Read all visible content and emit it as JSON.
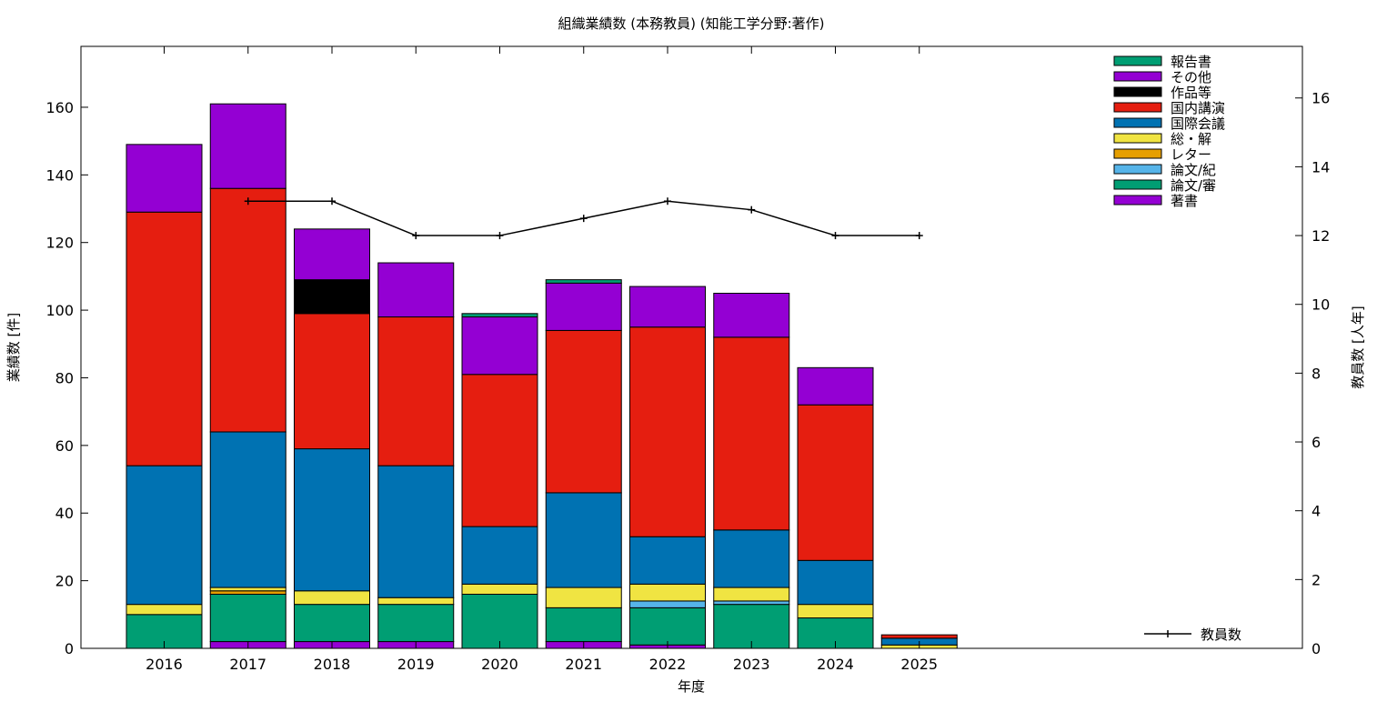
{
  "chart_data": {
    "type": "bar",
    "stacked": true,
    "title": "組織業績数 (本務教員) (知能工学分野:著作)",
    "xlabel": "年度",
    "ylabel": "業績数 [件]",
    "y2label": "教員数 [人年]",
    "ylim": [
      0,
      178
    ],
    "y2lim": [
      0,
      17.5
    ],
    "yticks": [
      0,
      20,
      40,
      60,
      80,
      100,
      120,
      140,
      160
    ],
    "y2ticks": [
      0,
      2,
      4,
      6,
      8,
      10,
      12,
      14,
      16
    ],
    "categories": [
      "2016",
      "2017",
      "2018",
      "2019",
      "2020",
      "2021",
      "2022",
      "2023",
      "2024",
      "2025"
    ],
    "series": [
      {
        "name": "著書",
        "color": "#9400d3",
        "values": [
          0,
          2,
          2,
          2,
          0,
          2,
          1,
          0,
          0,
          0
        ]
      },
      {
        "name": "論文/審",
        "color": "#009e73",
        "values": [
          10,
          14,
          11,
          11,
          16,
          10,
          11,
          13,
          9,
          0
        ]
      },
      {
        "name": "論文/紀",
        "color": "#56b4e9",
        "values": [
          0,
          0,
          0,
          0,
          0,
          0,
          2,
          1,
          0,
          0
        ]
      },
      {
        "name": "レター",
        "color": "#e69f00",
        "values": [
          0,
          1,
          0,
          0,
          0,
          0,
          0,
          0,
          0,
          0
        ]
      },
      {
        "name": "総・解",
        "color": "#f0e442",
        "values": [
          3,
          1,
          4,
          2,
          3,
          6,
          5,
          4,
          4,
          1
        ]
      },
      {
        "name": "国際会議",
        "color": "#0072b2",
        "values": [
          41,
          46,
          42,
          39,
          17,
          28,
          14,
          17,
          13,
          2
        ]
      },
      {
        "name": "国内講演",
        "color": "#e51e10",
        "values": [
          75,
          72,
          40,
          44,
          45,
          48,
          62,
          57,
          46,
          1
        ]
      },
      {
        "name": "作品等",
        "color": "#000000",
        "values": [
          0,
          0,
          10,
          0,
          0,
          0,
          0,
          0,
          0,
          0
        ]
      },
      {
        "name": "その他",
        "color": "#9400d3",
        "values": [
          20,
          25,
          15,
          16,
          17,
          14,
          12,
          13,
          11,
          0
        ]
      },
      {
        "name": "報告書",
        "color": "#009e73",
        "values": [
          0,
          0,
          0,
          0,
          1,
          1,
          0,
          0,
          0,
          0
        ]
      }
    ],
    "line_series": {
      "name": "教員数",
      "color": "#000000",
      "axis": "right",
      "x": [
        "2017",
        "2018",
        "2019",
        "2020",
        "2021",
        "2022",
        "2023",
        "2024",
        "2025"
      ],
      "values": [
        13,
        13,
        12,
        12,
        12.5,
        13,
        12.75,
        12,
        12
      ]
    },
    "legend_placement": "top-right",
    "grid": false
  }
}
